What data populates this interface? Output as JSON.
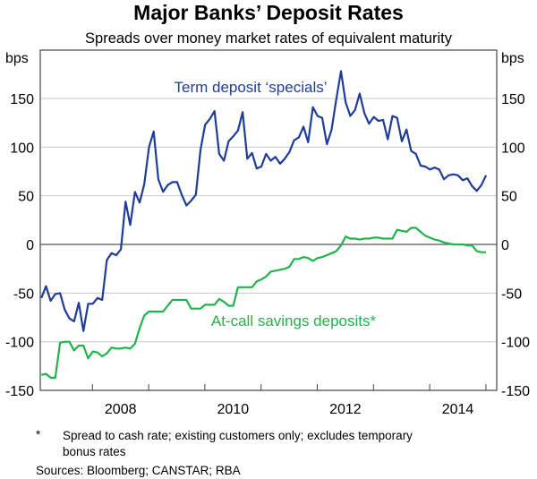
{
  "chart_data": {
    "type": "line",
    "title": "Major Banks’ Deposit Rates",
    "subtitle": "Spreads over money market rates of equivalent maturity",
    "ylabel_left": "bps",
    "ylabel_right": "bps",
    "ylim": [
      -150,
      200
    ],
    "yticks": [
      -150,
      -100,
      -50,
      0,
      50,
      100,
      150
    ],
    "xlim": [
      2007.05,
      2015.17
    ],
    "xtick_labels": [
      "2008",
      "2010",
      "2012",
      "2014"
    ],
    "xtick_label_years": [
      2008,
      2010,
      2012,
      2014
    ],
    "year_ticks": [
      2008,
      2009,
      2010,
      2011,
      2012,
      2013,
      2014,
      2015
    ],
    "grid": true,
    "x_start": 2007.09,
    "x_step_years": 0.0833,
    "frequency": "monthly",
    "series": [
      {
        "name": "Term deposit ‘specials’",
        "color": "#1f3d98",
        "values": [
          -55,
          -43,
          -58,
          -51,
          -50,
          -67,
          -76,
          -79,
          -60,
          -89,
          -61,
          -61,
          -55,
          -57,
          -16,
          -9,
          -11,
          -5,
          44,
          20,
          54,
          43,
          62,
          100,
          116,
          67,
          54,
          61,
          64,
          64,
          51,
          40,
          45,
          51,
          97,
          123,
          129,
          137,
          93,
          86,
          106,
          111,
          117,
          136,
          88,
          94,
          78,
          80,
          93,
          86,
          90,
          83,
          88,
          95,
          107,
          110,
          121,
          105,
          141,
          132,
          130,
          103,
          118,
          149,
          178,
          146,
          132,
          138,
          155,
          135,
          124,
          131,
          127,
          128,
          108,
          132,
          130,
          106,
          118,
          96,
          93,
          81,
          80,
          77,
          79,
          77,
          67,
          71,
          72,
          71,
          66,
          68,
          60,
          55,
          61,
          71
        ]
      },
      {
        "name": "At-call savings deposits*",
        "color": "#22b24c",
        "values": [
          -134,
          -133,
          -137,
          -137,
          -101,
          -100,
          -100,
          -109,
          -104,
          -104,
          -117,
          -110,
          -111,
          -115,
          -112,
          -106,
          -107,
          -107,
          -106,
          -107,
          -102,
          -86,
          -73,
          -69,
          -69,
          -69,
          -69,
          -63,
          -57,
          -57,
          -57,
          -57,
          -66,
          -66,
          -66,
          -62,
          -62,
          -62,
          -56,
          -59,
          -63,
          -63,
          -44,
          -44,
          -44,
          -44,
          -38,
          -36,
          -33,
          -28,
          -27,
          -26,
          -25,
          -23,
          -15,
          -15,
          -13,
          -14,
          -17,
          -14,
          -13,
          -11,
          -9,
          -7,
          -1,
          8,
          6,
          6,
          5,
          6,
          6,
          7,
          7,
          6,
          6,
          6,
          15,
          14,
          13,
          17,
          17,
          13,
          9,
          7,
          5,
          4,
          2,
          1,
          0,
          0,
          0,
          -1,
          -1,
          -7,
          -8,
          -8
        ]
      }
    ],
    "footnote_marker": "*",
    "footnote_line1": "Spread to cash rate; existing customers only; excludes temporary",
    "footnote_line2": "bonus rates",
    "sources": "Sources:  Bloomberg; CANSTAR; RBA"
  }
}
